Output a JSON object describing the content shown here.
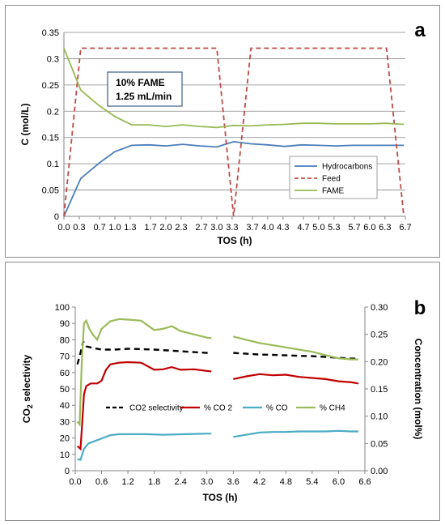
{
  "chart_data": [
    {
      "panel_label": "a",
      "type": "line",
      "xlabel": "TOS (h)",
      "ylabel": "C (mol/L)",
      "xlim": [
        0,
        6.7
      ],
      "ylim": [
        0,
        0.35
      ],
      "x_ticks": [
        "0.0",
        "0.3",
        "0.7",
        "1.0",
        "1.3",
        "1.7",
        "2.0",
        "2.3",
        "2.7",
        "3.0",
        "3.3",
        "3.7",
        "4.0",
        "4.3",
        "4.7",
        "5.0",
        "5.3",
        "5.7",
        "6.0",
        "6.3",
        "6.7"
      ],
      "y_ticks": [
        "0",
        "0.05",
        "0.1",
        "0.15",
        "0.2",
        "0.25",
        "0.3",
        "0.35"
      ],
      "grid": "horizontal",
      "legend_position": "bottom-right",
      "annotation_lines": [
        "10% FAME",
        "1.25 mL/min"
      ],
      "series": [
        {
          "name": "Hydrocarbons",
          "color": "#4a7ebb",
          "dash": "solid",
          "x": [
            0,
            0.33,
            0.7,
            1.0,
            1.33,
            1.67,
            2.0,
            2.33,
            2.67,
            3.0,
            3.33,
            3.67,
            4.0,
            4.33,
            4.67,
            5.0,
            5.33,
            5.67,
            6.0,
            6.33,
            6.67
          ],
          "y": [
            0.0,
            0.072,
            0.102,
            0.123,
            0.135,
            0.136,
            0.134,
            0.137,
            0.134,
            0.132,
            0.142,
            0.138,
            0.136,
            0.133,
            0.136,
            0.135,
            0.134,
            0.135,
            0.135,
            0.135,
            0.135
          ]
        },
        {
          "name": "Feed",
          "color": "#be4b48",
          "dash": "dashed",
          "x": [
            0,
            0.33,
            3.0,
            3.33,
            3.67,
            6.33,
            6.67
          ],
          "y": [
            0.0,
            0.32,
            0.32,
            0.0,
            0.32,
            0.32,
            0.0
          ]
        },
        {
          "name": "FAME",
          "color": "#98b954",
          "dash": "solid",
          "x": [
            0,
            0.33,
            0.7,
            1.0,
            1.33,
            1.67,
            2.0,
            2.33,
            2.67,
            3.0,
            3.33,
            3.67,
            4.0,
            4.33,
            4.67,
            5.0,
            5.33,
            5.67,
            6.0,
            6.33,
            6.67
          ],
          "y": [
            0.32,
            0.24,
            0.21,
            0.19,
            0.174,
            0.174,
            0.171,
            0.174,
            0.171,
            0.169,
            0.173,
            0.172,
            0.174,
            0.175,
            0.177,
            0.177,
            0.176,
            0.176,
            0.176,
            0.177,
            0.175
          ]
        }
      ]
    },
    {
      "panel_label": "b",
      "type": "line",
      "xlabel": "TOS (h)",
      "ylabel_left": "CO",
      "ylabel_left_sub": "2",
      "ylabel_left_rest": " selectivity",
      "ylabel_right": "Concentration (mol%)",
      "xlim": [
        0,
        6.6
      ],
      "ylim_left": [
        0,
        100
      ],
      "ylim_right": [
        0,
        0.3
      ],
      "x_ticks": [
        "0.0",
        "0.6",
        "1.2",
        "1.8",
        "2.4",
        "3.0",
        "3.6",
        "4.2",
        "4.8",
        "5.4",
        "6.0",
        "6.6"
      ],
      "y_ticks_left": [
        "0",
        "10",
        "20",
        "30",
        "40",
        "50",
        "60",
        "70",
        "80",
        "90",
        "100"
      ],
      "y_ticks_right": [
        "0.00",
        "0.05",
        "0.10",
        "0.15",
        "0.20",
        "0.25",
        "0.30"
      ],
      "grid": "none",
      "legend_position": "middle",
      "series": [
        {
          "name": "CO2 selectivity",
          "color": "#000000",
          "dash": "dashed",
          "axis": "left",
          "segments": [
            {
              "x": [
                0.05,
                0.12,
                0.18,
                0.25,
                0.4,
                0.6,
                0.9,
                1.2,
                1.5,
                1.8,
                2.1,
                2.4,
                2.7,
                3.0,
                3.1
              ],
              "y": [
                65,
                72,
                79,
                76,
                75,
                74,
                74,
                74.5,
                74.3,
                74,
                73.5,
                73,
                72.5,
                72,
                72
              ]
            },
            {
              "x": [
                3.6,
                3.9,
                4.2,
                4.5,
                4.8,
                5.1,
                5.4,
                5.7,
                6.0,
                6.3,
                6.45
              ],
              "y": [
                72,
                71.5,
                71,
                70.8,
                70.5,
                70.2,
                70,
                69.5,
                69,
                68.5,
                68.5
              ]
            }
          ]
        },
        {
          "name": "% CO 2",
          "color": "#c00000",
          "dash": "solid",
          "axis": "right",
          "segments": [
            {
              "x": [
                0.05,
                0.12,
                0.16,
                0.2,
                0.25,
                0.35,
                0.5,
                0.6,
                0.7,
                0.8,
                1.0,
                1.2,
                1.5,
                1.8,
                2.0,
                2.2,
                2.4,
                2.7,
                3.0,
                3.1
              ],
              "y": [
                0.045,
                0.04,
                0.09,
                0.14,
                0.155,
                0.16,
                0.16,
                0.165,
                0.185,
                0.195,
                0.198,
                0.199,
                0.198,
                0.185,
                0.186,
                0.19,
                0.185,
                0.186,
                0.183,
                0.182
              ]
            },
            {
              "x": [
                3.6,
                3.9,
                4.2,
                4.5,
                4.8,
                5.1,
                5.4,
                5.7,
                6.0,
                6.3,
                6.45
              ],
              "y": [
                0.168,
                0.173,
                0.177,
                0.175,
                0.176,
                0.172,
                0.17,
                0.168,
                0.164,
                0.162,
                0.16
              ]
            }
          ]
        },
        {
          "name": "% CO",
          "color": "#4bacc6",
          "dash": "solid",
          "axis": "right",
          "segments": [
            {
              "x": [
                0.05,
                0.12,
                0.2,
                0.3,
                0.5,
                0.8,
                1.0,
                1.3,
                1.6,
                2.0,
                2.5,
                3.0,
                3.1
              ],
              "y": [
                0.021,
                0.02,
                0.04,
                0.05,
                0.056,
                0.065,
                0.067,
                0.067,
                0.067,
                0.066,
                0.067,
                0.068,
                0.068
              ]
            },
            {
              "x": [
                3.6,
                3.9,
                4.2,
                4.5,
                4.8,
                5.1,
                5.4,
                5.7,
                6.0,
                6.3,
                6.45
              ],
              "y": [
                0.062,
                0.066,
                0.07,
                0.071,
                0.071,
                0.072,
                0.072,
                0.072,
                0.073,
                0.072,
                0.072
              ]
            }
          ]
        },
        {
          "name": "% CH4",
          "color": "#9bbb59",
          "dash": "solid",
          "axis": "right",
          "segments": [
            {
              "x": [
                0.05,
                0.1,
                0.15,
                0.2,
                0.25,
                0.32,
                0.4,
                0.5,
                0.6,
                0.8,
                1.0,
                1.2,
                1.5,
                1.8,
                2.0,
                2.2,
                2.4,
                2.7,
                3.0,
                3.1
              ],
              "y": [
                0.09,
                0.085,
                0.2,
                0.27,
                0.275,
                0.26,
                0.25,
                0.24,
                0.26,
                0.274,
                0.278,
                0.277,
                0.275,
                0.258,
                0.26,
                0.265,
                0.256,
                0.25,
                0.244,
                0.243
              ]
            },
            {
              "x": [
                3.6,
                3.9,
                4.2,
                4.5,
                4.8,
                5.1,
                5.4,
                5.7,
                6.0,
                6.3,
                6.45
              ],
              "y": [
                0.246,
                0.24,
                0.234,
                0.23,
                0.226,
                0.222,
                0.218,
                0.212,
                0.206,
                0.204,
                0.204
              ]
            }
          ]
        }
      ]
    }
  ]
}
